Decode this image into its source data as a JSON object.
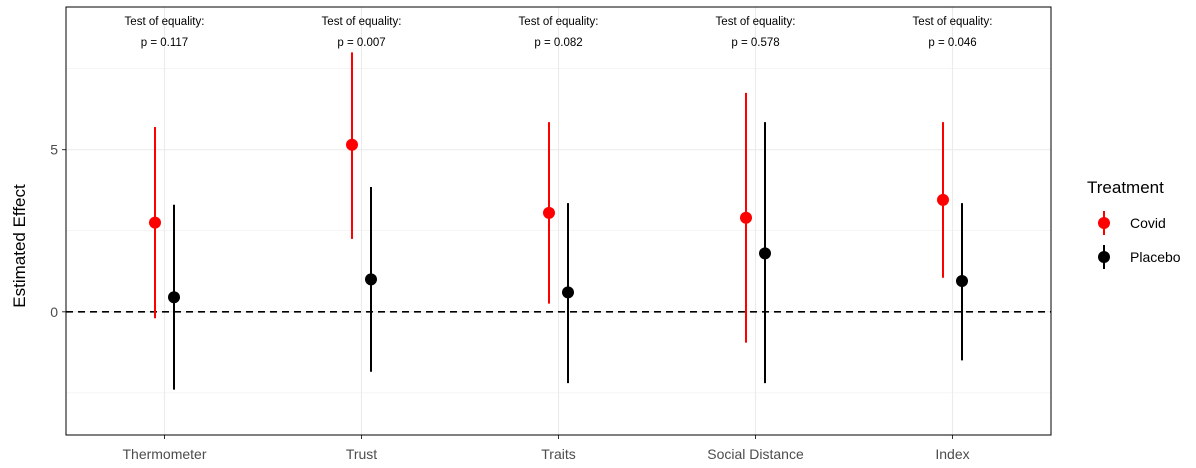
{
  "chart_data": {
    "type": "scatter",
    "title": "",
    "xlabel": "",
    "ylabel": "Estimated Effect",
    "ylim": [
      -3.8,
      9.4
    ],
    "yticks": [
      0,
      5
    ],
    "categories": [
      "Thermometer",
      "Trust",
      "Traits",
      "Social Distance",
      "Index"
    ],
    "reference_line": {
      "y": 0,
      "style": "dashed"
    },
    "grid": true,
    "legend": {
      "title": "Treatment",
      "placement": "right"
    },
    "series": [
      {
        "name": "Covid",
        "color": "#ff0000",
        "estimates": [
          2.75,
          5.15,
          3.05,
          2.9,
          3.45
        ],
        "ci_low": [
          -0.2,
          2.25,
          0.25,
          -0.95,
          1.05
        ],
        "ci_high": [
          5.7,
          8.0,
          5.85,
          6.75,
          5.85
        ]
      },
      {
        "name": "Placebo",
        "color": "#000000",
        "estimates": [
          0.45,
          1.0,
          0.6,
          1.8,
          0.95
        ],
        "ci_low": [
          -2.4,
          -1.85,
          -2.2,
          -2.2,
          -1.5
        ],
        "ci_high": [
          3.3,
          3.85,
          3.35,
          5.85,
          3.35
        ]
      }
    ],
    "annotations": [
      {
        "line1": "Test of equality:",
        "line2": "p = 0.117"
      },
      {
        "line1": "Test of equality:",
        "line2": "p = 0.007"
      },
      {
        "line1": "Test of equality:",
        "line2": "p = 0.082"
      },
      {
        "line1": "Test of equality:",
        "line2": "p = 0.578"
      },
      {
        "line1": "Test of equality:",
        "line2": "p = 0.046"
      }
    ]
  }
}
